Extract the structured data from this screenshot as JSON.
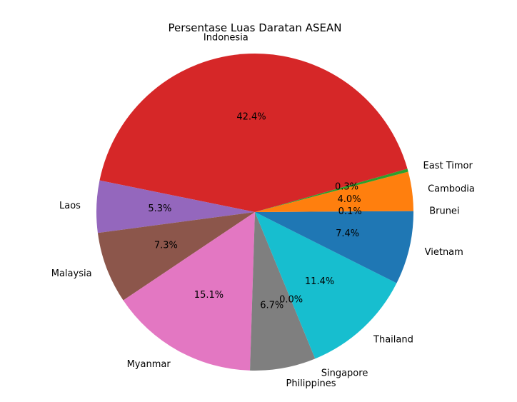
{
  "chart_data": {
    "type": "pie",
    "title": "Persentase Luas Daratan ASEAN",
    "slices": [
      {
        "label": "Brunei",
        "value": 0.1,
        "pct_text": "0.1%",
        "color": "#1f77b4"
      },
      {
        "label": "Cambodia",
        "value": 4.0,
        "pct_text": "4.0%",
        "color": "#ff7f0e"
      },
      {
        "label": "East Timor",
        "value": 0.3,
        "pct_text": "0.3%",
        "color": "#2ca02c"
      },
      {
        "label": "Indonesia",
        "value": 42.4,
        "pct_text": "42.4%",
        "color": "#d62728"
      },
      {
        "label": "Laos",
        "value": 5.3,
        "pct_text": "5.3%",
        "color": "#9467bd"
      },
      {
        "label": "Malaysia",
        "value": 7.3,
        "pct_text": "7.3%",
        "color": "#8c564b"
      },
      {
        "label": "Myanmar",
        "value": 15.1,
        "pct_text": "15.1%",
        "color": "#e377c2"
      },
      {
        "label": "Philippines",
        "value": 6.7,
        "pct_text": "6.7%",
        "color": "#7f7f7f"
      },
      {
        "label": "Singapore",
        "value": 0.0,
        "pct_text": "0.0%",
        "color": "#bcbd22"
      },
      {
        "label": "Thailand",
        "value": 11.4,
        "pct_text": "11.4%",
        "color": "#17becf"
      },
      {
        "label": "Vietnam",
        "value": 7.4,
        "pct_text": "7.4%",
        "color": "#1f77b4"
      }
    ]
  }
}
